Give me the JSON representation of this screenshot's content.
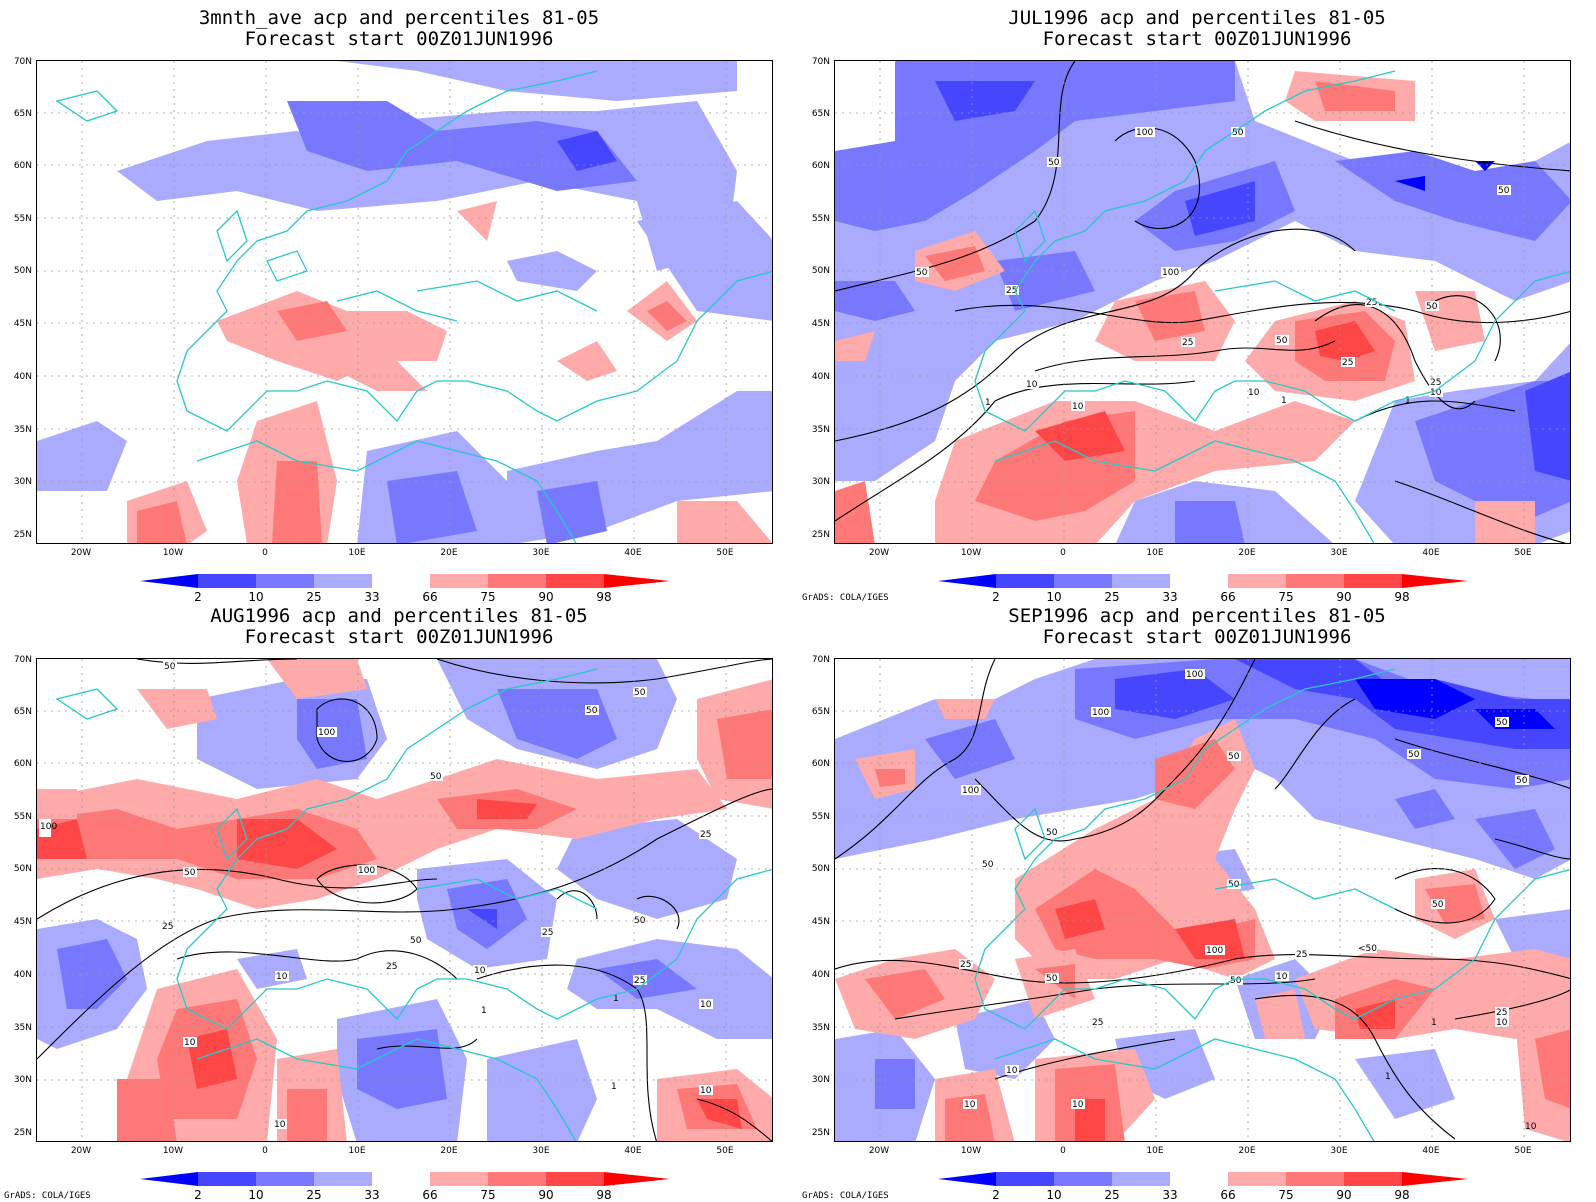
{
  "panels": [
    {
      "title": "3mnth_ave acp and percentiles 81-05",
      "subtitle": "Forecast start 00Z01JUN1996",
      "credit": ""
    },
    {
      "title": "JUL1996 acp and percentiles 81-05",
      "subtitle": "Forecast start 00Z01JUN1996",
      "credit": "GrADS: COLA/IGES"
    },
    {
      "title": "AUG1996 acp and percentiles 81-05",
      "subtitle": "Forecast start 00Z01JUN1996",
      "credit": "GrADS: COLA/IGES"
    },
    {
      "title": "SEP1996 acp and percentiles 81-05",
      "subtitle": "Forecast start 00Z01JUN1996",
      "credit": "GrADS: COLA/IGES"
    }
  ],
  "lat_labels": [
    "70N",
    "65N",
    "60N",
    "55N",
    "50N",
    "45N",
    "40N",
    "35N",
    "30N",
    "25N"
  ],
  "lon_labels": [
    "20W",
    "10W",
    "0",
    "10E",
    "20E",
    "30E",
    "40E",
    "50E"
  ],
  "colorbar": {
    "labels": [
      "2",
      "10",
      "25",
      "33",
      "66",
      "75",
      "90",
      "98"
    ],
    "colors": [
      "#0000ff",
      "#4646ff",
      "#7878ff",
      "#aaaaff",
      "#ffffff",
      "#ffaaaa",
      "#ff7878",
      "#ff4646",
      "#ff0000"
    ]
  },
  "map_colors": {
    "coast": "#28c8c8",
    "contour": "#000000",
    "grid": "#999999"
  }
}
